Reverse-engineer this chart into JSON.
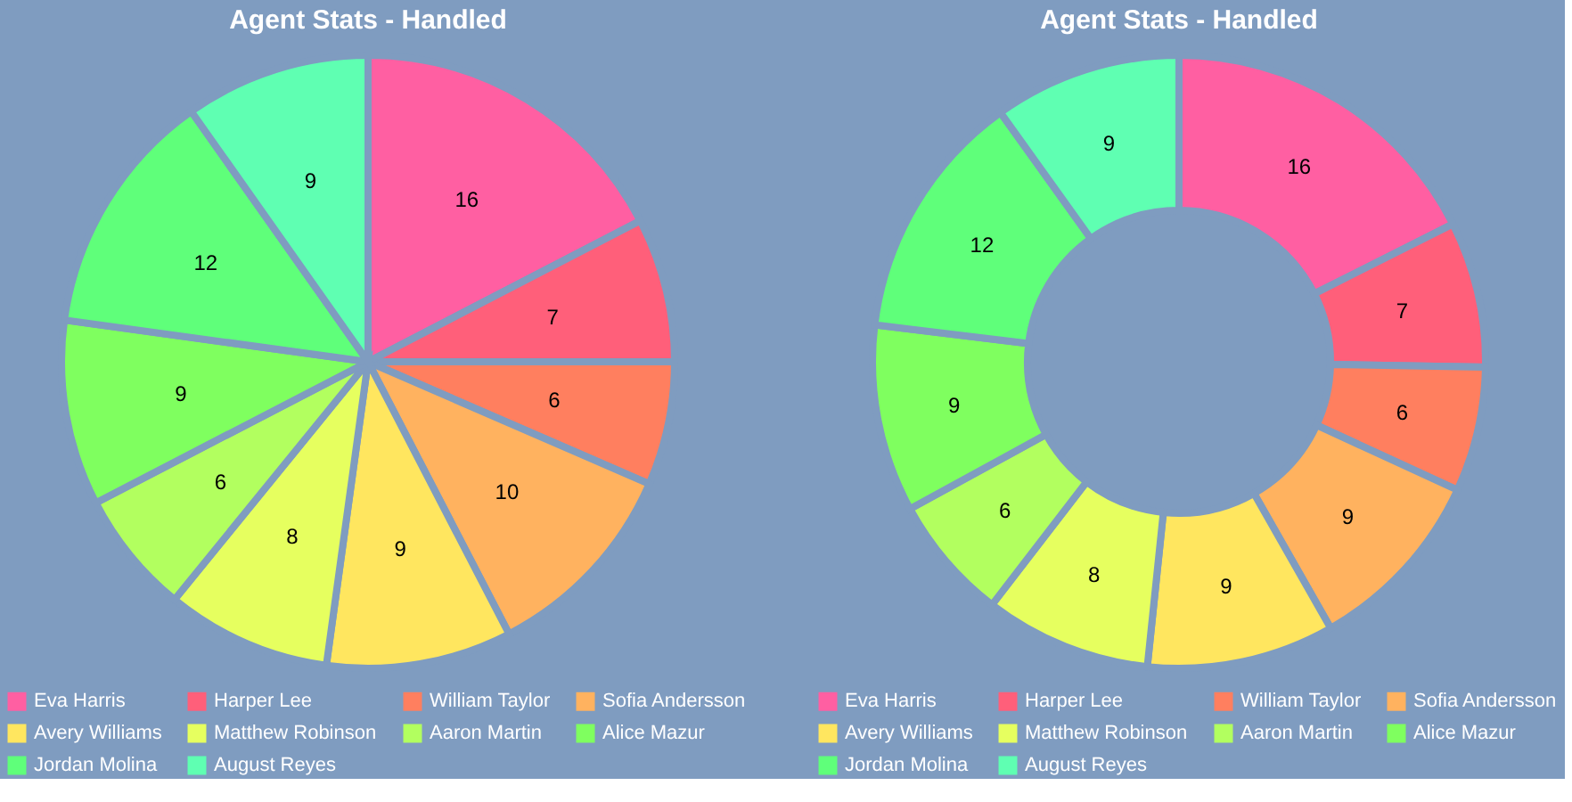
{
  "chart_data": [
    {
      "type": "pie",
      "title": "Agent Stats - Handled",
      "categories": [
        "Eva Harris",
        "Harper Lee",
        "William Taylor",
        "Sofia Andersson",
        "Avery Williams",
        "Matthew Robinson",
        "Aaron Martin",
        "Alice Mazur",
        "Jordan Molina",
        "August Reyes"
      ],
      "values": [
        16,
        7,
        6,
        10,
        9,
        8,
        6,
        9,
        12,
        9
      ],
      "colors": [
        "#ff5fa2",
        "#ff5f7a",
        "#ff7f5f",
        "#ffb25f",
        "#ffe65f",
        "#e6ff5f",
        "#b2ff5f",
        "#7fff5f",
        "#5fff7a",
        "#5fffb2"
      ],
      "data_labels": true,
      "legend": "bottom"
    },
    {
      "type": "donut",
      "title": "Agent Stats - Handled",
      "categories": [
        "Eva Harris",
        "Harper Lee",
        "William Taylor",
        "Sofia Andersson",
        "Avery Williams",
        "Matthew Robinson",
        "Aaron Martin",
        "Alice Mazur",
        "Jordan Molina",
        "August Reyes"
      ],
      "values": [
        16,
        7,
        6,
        9,
        9,
        8,
        6,
        9,
        12,
        9
      ],
      "colors": [
        "#ff5fa2",
        "#ff5f7a",
        "#ff7f5f",
        "#ffb25f",
        "#ffe65f",
        "#e6ff5f",
        "#b2ff5f",
        "#7fff5f",
        "#5fff7a",
        "#5fffb2"
      ],
      "data_labels": true,
      "legend": "bottom"
    }
  ]
}
